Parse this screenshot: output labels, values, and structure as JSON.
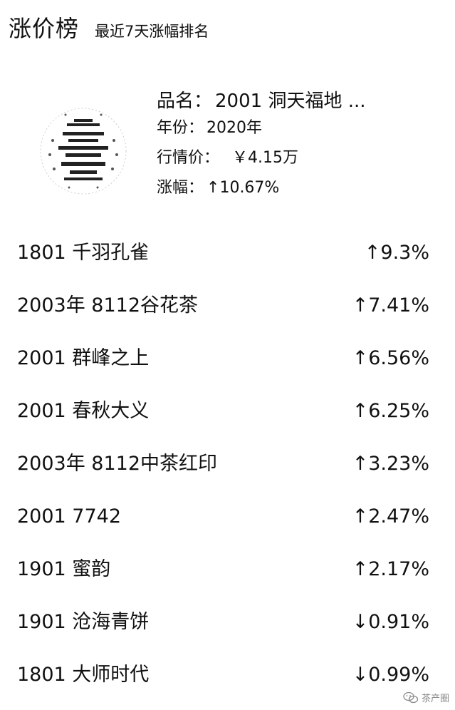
{
  "header": {
    "title": "涨价榜",
    "subtitle": "最近7天涨幅排名"
  },
  "featured": {
    "image_icon": "tea-cake-wrapper-image",
    "name_label": "品名：",
    "name_value": "2001 洞天福地 ...",
    "year_label": "年份：",
    "year_value": "2020年",
    "price_label": "行情价：",
    "price_value": "￥4.15万",
    "change_label": "涨幅：",
    "change_value": "↑10.67%"
  },
  "ranking": [
    {
      "name": "1801 千羽孔雀",
      "change": "↑9.3%"
    },
    {
      "name": "2003年 8112谷花茶",
      "change": "↑7.41%"
    },
    {
      "name": "2001 群峰之上",
      "change": "↑6.56%"
    },
    {
      "name": "2001 春秋大义",
      "change": "↑6.25%"
    },
    {
      "name": "2003年 8112中茶红印",
      "change": "↑3.23%"
    },
    {
      "name": "2001 7742",
      "change": "↑2.47%"
    },
    {
      "name": "1901 蜜韵",
      "change": "↑2.17%"
    },
    {
      "name": "1901 沧海青饼",
      "change": "↓0.91%"
    },
    {
      "name": "1801 大师时代",
      "change": "↓0.99%"
    }
  ],
  "watermark": {
    "icon": "wechat-icon",
    "text": "茶产圈"
  }
}
